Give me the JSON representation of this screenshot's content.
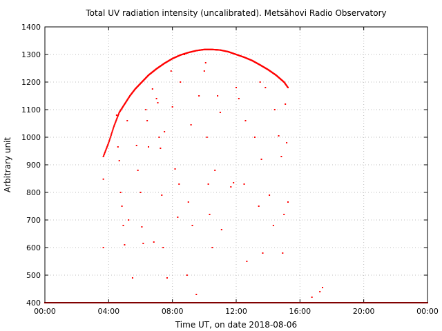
{
  "chart_data": {
    "type": "scatter",
    "title": "Total UV radiation intensity (uncalibrated). Metsähovi Radio Observatory",
    "xlabel": "Time UT, on date 2018-08-06",
    "ylabel": "Arbitrary unit",
    "xlim": [
      "00:00",
      "24:00"
    ],
    "ylim": [
      400,
      1400
    ],
    "x_ticks": [
      "00:00",
      "04:00",
      "08:00",
      "12:00",
      "16:00",
      "20:00",
      "00:00"
    ],
    "y_ticks": [
      400,
      500,
      600,
      700,
      800,
      900,
      1000,
      1100,
      1200,
      1300,
      1400
    ],
    "grid": true,
    "legend": "none",
    "series_color": "#ff0000",
    "envelope": {
      "x": [
        "03:40",
        "04:00",
        "04:20",
        "04:40",
        "05:00",
        "05:20",
        "05:40",
        "06:00",
        "06:30",
        "07:00",
        "07:30",
        "08:00",
        "08:30",
        "09:00",
        "09:30",
        "10:00",
        "10:30",
        "11:00",
        "11:30",
        "12:00",
        "12:30",
        "13:00",
        "13:30",
        "14:00",
        "14:30",
        "15:00",
        "15:15"
      ],
      "y": [
        930,
        980,
        1040,
        1090,
        1120,
        1150,
        1175,
        1195,
        1225,
        1248,
        1268,
        1285,
        1298,
        1307,
        1314,
        1318,
        1318,
        1316,
        1310,
        1300,
        1290,
        1278,
        1262,
        1245,
        1225,
        1200,
        1180
      ]
    },
    "scattered_points": [
      {
        "x": "03:40",
        "y": 848
      },
      {
        "x": "03:40",
        "y": 600
      },
      {
        "x": "04:30",
        "y": 1080
      },
      {
        "x": "04:35",
        "y": 965
      },
      {
        "x": "04:40",
        "y": 915
      },
      {
        "x": "04:45",
        "y": 800
      },
      {
        "x": "04:50",
        "y": 750
      },
      {
        "x": "04:55",
        "y": 680
      },
      {
        "x": "05:00",
        "y": 610
      },
      {
        "x": "05:10",
        "y": 1060
      },
      {
        "x": "05:15",
        "y": 700
      },
      {
        "x": "05:30",
        "y": 490
      },
      {
        "x": "05:45",
        "y": 970
      },
      {
        "x": "05:50",
        "y": 880
      },
      {
        "x": "06:00",
        "y": 800
      },
      {
        "x": "06:05",
        "y": 675
      },
      {
        "x": "06:10",
        "y": 615
      },
      {
        "x": "06:20",
        "y": 1100
      },
      {
        "x": "06:25",
        "y": 1060
      },
      {
        "x": "06:30",
        "y": 965
      },
      {
        "x": "06:45",
        "y": 1175
      },
      {
        "x": "06:50",
        "y": 620
      },
      {
        "x": "07:00",
        "y": 1140
      },
      {
        "x": "07:05",
        "y": 1125
      },
      {
        "x": "07:10",
        "y": 1000
      },
      {
        "x": "07:15",
        "y": 960
      },
      {
        "x": "07:20",
        "y": 790
      },
      {
        "x": "07:25",
        "y": 600
      },
      {
        "x": "07:30",
        "y": 1020
      },
      {
        "x": "07:40",
        "y": 490
      },
      {
        "x": "07:55",
        "y": 1240
      },
      {
        "x": "08:00",
        "y": 1110
      },
      {
        "x": "08:10",
        "y": 885
      },
      {
        "x": "08:20",
        "y": 710
      },
      {
        "x": "08:25",
        "y": 830
      },
      {
        "x": "08:30",
        "y": 1200
      },
      {
        "x": "08:45",
        "y": 1300
      },
      {
        "x": "08:55",
        "y": 500
      },
      {
        "x": "09:00",
        "y": 765
      },
      {
        "x": "09:10",
        "y": 1045
      },
      {
        "x": "09:15",
        "y": 680
      },
      {
        "x": "09:30",
        "y": 430
      },
      {
        "x": "09:40",
        "y": 1150
      },
      {
        "x": "10:00",
        "y": 1240
      },
      {
        "x": "10:05",
        "y": 1270
      },
      {
        "x": "10:10",
        "y": 1000
      },
      {
        "x": "10:15",
        "y": 830
      },
      {
        "x": "10:20",
        "y": 720
      },
      {
        "x": "10:30",
        "y": 600
      },
      {
        "x": "10:40",
        "y": 880
      },
      {
        "x": "10:50",
        "y": 1150
      },
      {
        "x": "11:00",
        "y": 1090
      },
      {
        "x": "11:05",
        "y": 665
      },
      {
        "x": "11:40",
        "y": 820
      },
      {
        "x": "11:50",
        "y": 835
      },
      {
        "x": "12:00",
        "y": 1180
      },
      {
        "x": "12:10",
        "y": 1140
      },
      {
        "x": "12:30",
        "y": 830
      },
      {
        "x": "12:35",
        "y": 1060
      },
      {
        "x": "12:40",
        "y": 550
      },
      {
        "x": "13:10",
        "y": 1000
      },
      {
        "x": "13:25",
        "y": 750
      },
      {
        "x": "13:30",
        "y": 1200
      },
      {
        "x": "13:35",
        "y": 920
      },
      {
        "x": "13:40",
        "y": 580
      },
      {
        "x": "13:50",
        "y": 1180
      },
      {
        "x": "14:05",
        "y": 790
      },
      {
        "x": "14:20",
        "y": 680
      },
      {
        "x": "14:25",
        "y": 1100
      },
      {
        "x": "14:40",
        "y": 1005
      },
      {
        "x": "14:50",
        "y": 930
      },
      {
        "x": "14:55",
        "y": 580
      },
      {
        "x": "15:00",
        "y": 720
      },
      {
        "x": "15:05",
        "y": 1120
      },
      {
        "x": "15:10",
        "y": 980
      },
      {
        "x": "15:15",
        "y": 765
      },
      {
        "x": "16:45",
        "y": 420
      },
      {
        "x": "17:15",
        "y": 440
      },
      {
        "x": "17:25",
        "y": 455
      }
    ]
  }
}
